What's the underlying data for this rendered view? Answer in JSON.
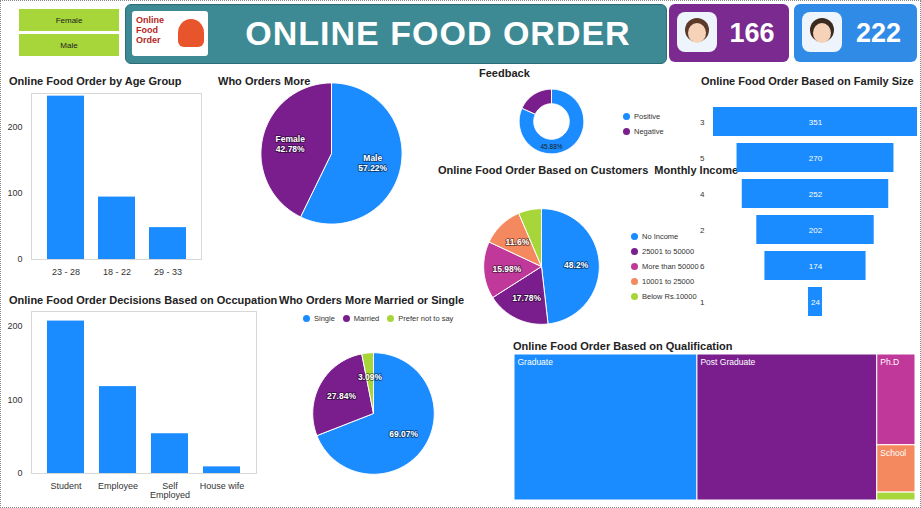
{
  "header": {
    "title": "ONLINE FOOD ORDER",
    "logo_text": "Online Food Order",
    "slicer": [
      "Female",
      "Male"
    ],
    "cards": [
      {
        "value": 166,
        "color": "#7b2a8f"
      },
      {
        "value": 222,
        "color": "#2f8be6"
      }
    ]
  },
  "chart_data": [
    {
      "type": "bar",
      "title": "Online Food Order by Age Group",
      "categories": [
        "23 - 28",
        "18 - 22",
        "29 - 33"
      ],
      "values": [
        246,
        94,
        48
      ],
      "color": "#1a8cff",
      "ylim": [
        0,
        250
      ],
      "yticks": [
        0,
        100,
        200
      ],
      "grid": false
    },
    {
      "type": "pie",
      "title": "Who Orders More",
      "categories": [
        "Male",
        "Female"
      ],
      "values": [
        57.22,
        42.78
      ],
      "value_labels": [
        "57.22%",
        "42.78%"
      ],
      "colors": [
        "#1a8cff",
        "#7a1e8e"
      ],
      "data_labels": true
    },
    {
      "type": "donut",
      "title": "Feedback",
      "categories": [
        "Positive",
        "Negative"
      ],
      "values": [
        81.7,
        18.3
      ],
      "colors": [
        "#1a8cff",
        "#7a1e8e"
      ],
      "legend": "right",
      "annotations": [
        "45.88%"
      ]
    },
    {
      "type": "pie",
      "title": "Online Food Order Based on Customers  Monthly Income",
      "categories": [
        "No Income",
        "25001 to 50000",
        "More than 50000",
        "10001 to 25000",
        "Below Rs.10000"
      ],
      "values": [
        48.2,
        17.78,
        15.98,
        11.6,
        6.44
      ],
      "value_labels": [
        "48.2%",
        "17.78%",
        "15.98%",
        "11.6%",
        null
      ],
      "colors": [
        "#1a8cff",
        "#7a1e8e",
        "#c0399a",
        "#f4895f",
        "#a7d63a"
      ],
      "legend": "right",
      "data_labels": true
    },
    {
      "type": "funnel",
      "title": "Online Food Order Based on Family Size",
      "categories": [
        "3",
        "5",
        "4",
        "2",
        "6",
        "1"
      ],
      "values": [
        351,
        270,
        252,
        202,
        174,
        24
      ],
      "color": "#1a8cff",
      "orientation": "horizontal",
      "data_labels": true,
      "tick_labels": "y"
    },
    {
      "type": "bar",
      "title": "Online Food Order Decisions Based on Occupation",
      "categories": [
        "Student",
        "Employee",
        "Self Employed",
        "House wife"
      ],
      "values": [
        207,
        118,
        54,
        9
      ],
      "color": "#1a8cff",
      "ylim": [
        0,
        220
      ],
      "yticks": [
        0,
        100,
        200
      ],
      "grid": false
    },
    {
      "type": "pie",
      "title": "Who Orders More Married or Single",
      "categories": [
        "Single",
        "Married",
        "Prefer not to say"
      ],
      "values": [
        69.07,
        27.84,
        3.09
      ],
      "value_labels": [
        "69.07%",
        "27.84%",
        "3.09%"
      ],
      "colors": [
        "#1a8cff",
        "#7a1e8e",
        "#a7d63a"
      ],
      "legend": "top",
      "data_labels": true
    },
    {
      "type": "treemap",
      "title": "Online Food Order Based on Qualification",
      "categories": [
        "Graduate",
        "Post Graduate",
        "Ph.D",
        "School",
        null
      ],
      "values": [
        177,
        174,
        23,
        12,
        2
      ],
      "colors": [
        "#1a8cff",
        "#7a1e8e",
        "#c0399a",
        "#f4895f",
        "#a7d63a"
      ]
    }
  ]
}
